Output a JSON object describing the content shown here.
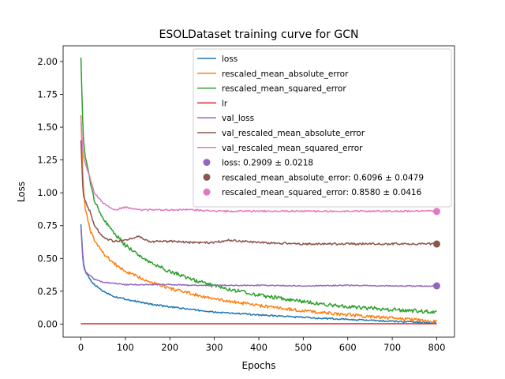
{
  "chart_data": {
    "type": "line",
    "title": "ESOLDataset training curve for GCN",
    "xlabel": "Epochs",
    "ylabel": "Loss",
    "xlim": [
      -40,
      840
    ],
    "ylim": [
      -0.1,
      2.12
    ],
    "xticks": [
      0,
      100,
      200,
      300,
      400,
      500,
      600,
      700,
      800
    ],
    "yticks": [
      0.0,
      0.25,
      0.5,
      0.75,
      1.0,
      1.25,
      1.5,
      1.75,
      2.0
    ],
    "xtick_labels": [
      "0",
      "100",
      "200",
      "300",
      "400",
      "500",
      "600",
      "700",
      "800"
    ],
    "ytick_labels": [
      "0.00",
      "0.25",
      "0.50",
      "0.75",
      "1.00",
      "1.25",
      "1.50",
      "1.75",
      "2.00"
    ],
    "grid": false,
    "legend_position": "top-right",
    "series": [
      {
        "name": "loss",
        "color": "#1f77b4",
        "x": [
          0,
          5,
          10,
          20,
          30,
          50,
          75,
          100,
          150,
          200,
          250,
          300,
          400,
          500,
          600,
          700,
          800
        ],
        "y": [
          0.76,
          0.48,
          0.4,
          0.34,
          0.3,
          0.25,
          0.21,
          0.19,
          0.155,
          0.13,
          0.11,
          0.09,
          0.07,
          0.05,
          0.035,
          0.02,
          0.01
        ]
      },
      {
        "name": "rescaled_mean_absolute_error",
        "color": "#ff7f0e",
        "x": [
          0,
          5,
          10,
          20,
          30,
          50,
          75,
          100,
          150,
          200,
          250,
          300,
          400,
          500,
          600,
          700,
          800
        ],
        "y": [
          1.59,
          1.05,
          0.88,
          0.72,
          0.64,
          0.54,
          0.46,
          0.4,
          0.33,
          0.27,
          0.23,
          0.19,
          0.14,
          0.1,
          0.07,
          0.045,
          0.02
        ]
      },
      {
        "name": "rescaled_mean_squared_error",
        "color": "#2ca02c",
        "x": [
          0,
          5,
          10,
          20,
          30,
          50,
          75,
          100,
          150,
          200,
          250,
          300,
          400,
          500,
          600,
          700,
          800
        ],
        "y": [
          2.03,
          1.42,
          1.27,
          1.1,
          0.95,
          0.8,
          0.69,
          0.6,
          0.48,
          0.4,
          0.34,
          0.29,
          0.22,
          0.17,
          0.13,
          0.11,
          0.09
        ]
      },
      {
        "name": "lr",
        "color": "#d62728",
        "x": [
          0,
          800
        ],
        "y": [
          0.002,
          0.002
        ]
      },
      {
        "name": "val_loss",
        "color": "#9467bd",
        "x": [
          0,
          5,
          10,
          20,
          30,
          50,
          75,
          100,
          150,
          200,
          250,
          300,
          400,
          500,
          600,
          700,
          800
        ],
        "y": [
          0.74,
          0.45,
          0.4,
          0.37,
          0.34,
          0.32,
          0.31,
          0.3,
          0.3,
          0.3,
          0.295,
          0.295,
          0.295,
          0.29,
          0.295,
          0.29,
          0.29
        ]
      },
      {
        "name": "val_rescaled_mean_absolute_error",
        "color": "#8c564b",
        "x": [
          0,
          5,
          10,
          20,
          30,
          50,
          75,
          100,
          130,
          150,
          200,
          250,
          300,
          330,
          400,
          500,
          600,
          700,
          800
        ],
        "y": [
          1.4,
          0.98,
          0.93,
          0.86,
          0.75,
          0.66,
          0.63,
          0.64,
          0.67,
          0.63,
          0.63,
          0.62,
          0.62,
          0.64,
          0.62,
          0.61,
          0.61,
          0.61,
          0.61
        ]
      },
      {
        "name": "val_rescaled_mean_squared_error",
        "color": "#e377c2",
        "x": [
          0,
          5,
          10,
          20,
          30,
          50,
          75,
          100,
          130,
          150,
          200,
          250,
          300,
          400,
          500,
          600,
          700,
          800
        ],
        "y": [
          1.57,
          1.28,
          1.22,
          1.12,
          1.0,
          0.92,
          0.87,
          0.89,
          0.87,
          0.87,
          0.87,
          0.87,
          0.86,
          0.86,
          0.86,
          0.86,
          0.86,
          0.86
        ]
      }
    ],
    "markers": [
      {
        "label": "loss: 0.2909 ± 0.0218",
        "color": "#9467bd",
        "x": 800,
        "y": 0.2909
      },
      {
        "label": "rescaled_mean_absolute_error: 0.6096 ± 0.0479",
        "color": "#8c564b",
        "x": 800,
        "y": 0.6096
      },
      {
        "label": "rescaled_mean_squared_error: 0.8580 ± 0.0416",
        "color": "#e377c2",
        "x": 800,
        "y": 0.858
      }
    ]
  }
}
